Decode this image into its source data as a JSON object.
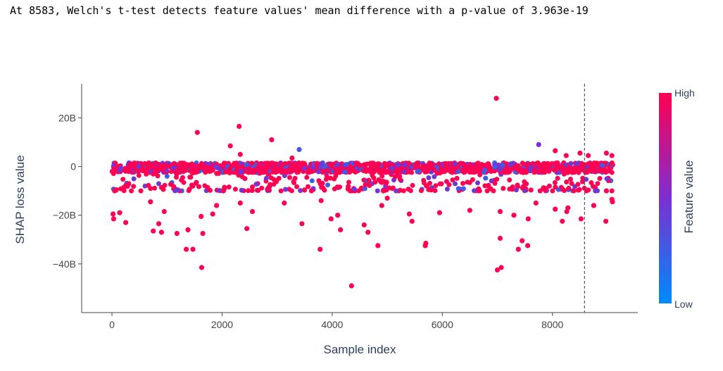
{
  "title": "At 8583, Welch's t-test detects feature values' mean difference with a p-value of 3.963e-19",
  "chart_data": {
    "type": "scatter",
    "title": "At 8583, Welch's t-test detects feature values' mean difference with a p-value of 3.963e-19",
    "xlabel": "Sample index",
    "ylabel": "SHAP loss value",
    "xlim": [
      -550,
      9550
    ],
    "ylim": [
      -60,
      34
    ],
    "x_ticks": [
      0,
      2000,
      4000,
      6000,
      8000
    ],
    "x_tick_labels": [
      "0",
      "2000",
      "4000",
      "6000",
      "8000"
    ],
    "y_ticks": [
      -40,
      -20,
      0,
      20
    ],
    "y_tick_labels": [
      "−40B",
      "−20B",
      "0",
      "20B"
    ],
    "y_unit": "B",
    "grid": false,
    "split_line_x": 8583,
    "colorbar": {
      "title": "Feature value",
      "high_label": "High",
      "low_label": "Low",
      "high_color": "#ff0052",
      "mid_color": "#7b2fd1",
      "low_color": "#008bfb"
    },
    "highlighted_points": [
      {
        "x": 20,
        "y": -19.5,
        "v": 1.0
      },
      {
        "x": 30,
        "y": -21.5,
        "v": 1.0
      },
      {
        "x": 140,
        "y": -19.0,
        "v": 1.0
      },
      {
        "x": 220,
        "y": -8.5,
        "v": 1.0
      },
      {
        "x": 250,
        "y": -23.0,
        "v": 1.0
      },
      {
        "x": 700,
        "y": -14.5,
        "v": 1.0
      },
      {
        "x": 750,
        "y": -26.5,
        "v": 1.0
      },
      {
        "x": 850,
        "y": -23.5,
        "v": 1.0
      },
      {
        "x": 900,
        "y": -27.0,
        "v": 1.0
      },
      {
        "x": 950,
        "y": -18.5,
        "v": 1.0
      },
      {
        "x": 1180,
        "y": -27.5,
        "v": 1.0
      },
      {
        "x": 1350,
        "y": -34.0,
        "v": 1.0
      },
      {
        "x": 1380,
        "y": -26.0,
        "v": 1.0
      },
      {
        "x": 1470,
        "y": -34.0,
        "v": 1.0
      },
      {
        "x": 1550,
        "y": 14.0,
        "v": 1.0
      },
      {
        "x": 1620,
        "y": -20.5,
        "v": 1.0
      },
      {
        "x": 1650,
        "y": -27.5,
        "v": 1.0
      },
      {
        "x": 1630,
        "y": -41.5,
        "v": 1.0
      },
      {
        "x": 1900,
        "y": -16.0,
        "v": 1.0
      },
      {
        "x": 1830,
        "y": -19.5,
        "v": 1.0
      },
      {
        "x": 2150,
        "y": 8.5,
        "v": 1.0
      },
      {
        "x": 2310,
        "y": 16.5,
        "v": 1.0
      },
      {
        "x": 2330,
        "y": 5.0,
        "v": 1.0
      },
      {
        "x": 2330,
        "y": -15.0,
        "v": 1.0
      },
      {
        "x": 2450,
        "y": -25.5,
        "v": 1.0
      },
      {
        "x": 2550,
        "y": -18.5,
        "v": 1.0
      },
      {
        "x": 2900,
        "y": 11.0,
        "v": 1.0
      },
      {
        "x": 3130,
        "y": -15.0,
        "v": 1.0
      },
      {
        "x": 3270,
        "y": 3.5,
        "v": 1.0
      },
      {
        "x": 3400,
        "y": 7.0,
        "v": 0.3
      },
      {
        "x": 3450,
        "y": -23.5,
        "v": 1.0
      },
      {
        "x": 3780,
        "y": -34.0,
        "v": 1.0
      },
      {
        "x": 3800,
        "y": -14.0,
        "v": 1.0
      },
      {
        "x": 3980,
        "y": -21.5,
        "v": 1.0
      },
      {
        "x": 4100,
        "y": -20.0,
        "v": 1.0
      },
      {
        "x": 4150,
        "y": -26.0,
        "v": 1.0
      },
      {
        "x": 4350,
        "y": -49.0,
        "v": 1.0
      },
      {
        "x": 4580,
        "y": -24.0,
        "v": 1.0
      },
      {
        "x": 4650,
        "y": -27.0,
        "v": 1.0
      },
      {
        "x": 4830,
        "y": -32.5,
        "v": 1.0
      },
      {
        "x": 4900,
        "y": -16.0,
        "v": 1.0
      },
      {
        "x": 5000,
        "y": -13.0,
        "v": 1.0
      },
      {
        "x": 5400,
        "y": -19.5,
        "v": 1.0
      },
      {
        "x": 5450,
        "y": -22.5,
        "v": 1.0
      },
      {
        "x": 5700,
        "y": -31.5,
        "v": 1.0
      },
      {
        "x": 5690,
        "y": -32.5,
        "v": 1.0
      },
      {
        "x": 5950,
        "y": -19.0,
        "v": 1.0
      },
      {
        "x": 6500,
        "y": -18.0,
        "v": 1.0
      },
      {
        "x": 6980,
        "y": 28.0,
        "v": 1.0
      },
      {
        "x": 7000,
        "y": -42.5,
        "v": 1.0
      },
      {
        "x": 7070,
        "y": -41.5,
        "v": 1.0
      },
      {
        "x": 7050,
        "y": -29.5,
        "v": 1.0
      },
      {
        "x": 7050,
        "y": -18.5,
        "v": 1.0
      },
      {
        "x": 7300,
        "y": -20.0,
        "v": 1.0
      },
      {
        "x": 7380,
        "y": -34.0,
        "v": 1.0
      },
      {
        "x": 7450,
        "y": -30.5,
        "v": 1.0
      },
      {
        "x": 7550,
        "y": -32.5,
        "v": 1.0
      },
      {
        "x": 7560,
        "y": -21.5,
        "v": 1.0
      },
      {
        "x": 7700,
        "y": -15.0,
        "v": 1.0
      },
      {
        "x": 7750,
        "y": 9.0,
        "v": 0.5
      },
      {
        "x": 8050,
        "y": 6.5,
        "v": 1.0
      },
      {
        "x": 8050,
        "y": -17.5,
        "v": 1.0
      },
      {
        "x": 8180,
        "y": -22.5,
        "v": 1.0
      },
      {
        "x": 8260,
        "y": -18.5,
        "v": 1.0
      },
      {
        "x": 8280,
        "y": -17.0,
        "v": 1.0
      },
      {
        "x": 8250,
        "y": 4.5,
        "v": 1.0
      },
      {
        "x": 8500,
        "y": 5.5,
        "v": 1.0
      },
      {
        "x": 8520,
        "y": -21.5,
        "v": 1.0
      },
      {
        "x": 8650,
        "y": 4.5,
        "v": 1.0
      },
      {
        "x": 8750,
        "y": -16.0,
        "v": 1.0
      },
      {
        "x": 8980,
        "y": -10.0,
        "v": 1.0
      },
      {
        "x": 8970,
        "y": -22.5,
        "v": 1.0
      },
      {
        "x": 8980,
        "y": 5.5,
        "v": 1.0
      },
      {
        "x": 9080,
        "y": 4.5,
        "v": 1.0
      },
      {
        "x": 9080,
        "y": -13.5,
        "v": 1.0
      },
      {
        "x": 9090,
        "y": -14.5,
        "v": 1.0
      }
    ],
    "dense_band": {
      "x_range": [
        0,
        9100
      ],
      "count": 1700,
      "core_y_range": [
        -2.5,
        1.5
      ],
      "scatter_y_range": [
        -10,
        3
      ],
      "note_color_mix": "mostly high (pink) with some mid (purple) points"
    }
  }
}
